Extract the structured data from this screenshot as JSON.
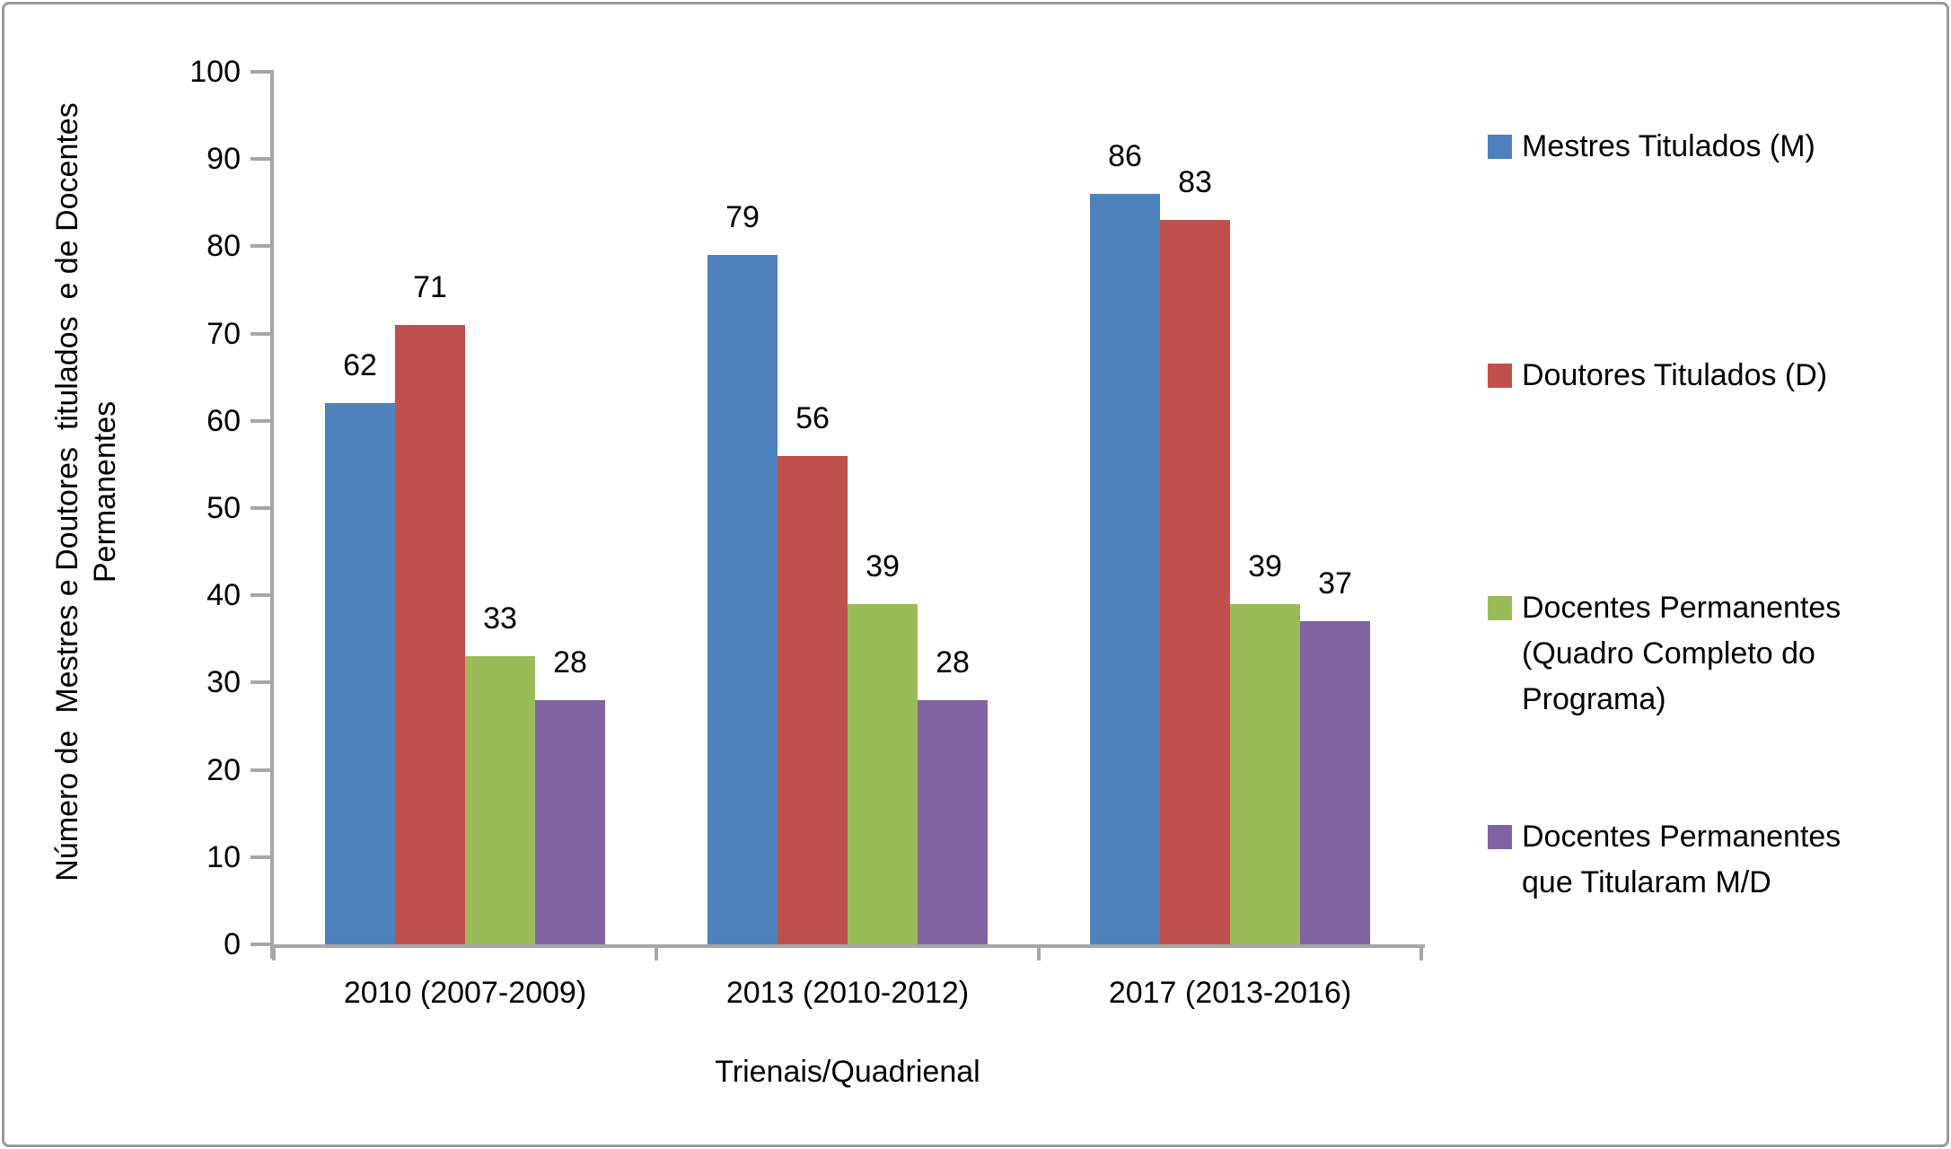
{
  "frame": {
    "border_color": "#9a9a9a",
    "background": "#ffffff"
  },
  "chart_data": {
    "type": "bar",
    "title": "",
    "categories": [
      "2010 (2007-2009)",
      "2013 (2010-2012)",
      "2017 (2013-2016)"
    ],
    "series": [
      {
        "name": "Mestres Titulados (M)",
        "legend_lines": [
          "Mestres Titulados (M)"
        ],
        "color": "#4F81BD",
        "values": [
          62,
          79,
          86
        ]
      },
      {
        "name": "Doutores Titulados (D)",
        "legend_lines": [
          "Doutores Titulados (D)"
        ],
        "color": "#C0504D",
        "values": [
          71,
          56,
          83
        ]
      },
      {
        "name": "Docentes Permanentes (Quadro Completo do Programa)",
        "legend_lines": [
          "Docentes Permanentes",
          "(Quadro Completo do",
          "Programa)"
        ],
        "color": "#9BBB59",
        "values": [
          33,
          39,
          39
        ]
      },
      {
        "name": "Docentes Permanentes que Titularam M/D",
        "legend_lines": [
          "Docentes Permanentes",
          "que Titularam M/D"
        ],
        "color": "#8064A2",
        "values": [
          28,
          28,
          37
        ]
      }
    ],
    "xlabel": "Trienais/Quadrienal",
    "ylabel_lines": [
      "Número de  Mestres e Doutores  titulados  e de Docentes",
      "Permanentes"
    ],
    "ylim": [
      0,
      100
    ],
    "ytick_step": 10,
    "yticks": [
      0,
      10,
      20,
      30,
      40,
      50,
      60,
      70,
      80,
      90,
      100
    ],
    "data_labels": true,
    "grid": false,
    "legend_position": "right",
    "axis_color": "#A6A6A6",
    "text_color": "#000000"
  }
}
